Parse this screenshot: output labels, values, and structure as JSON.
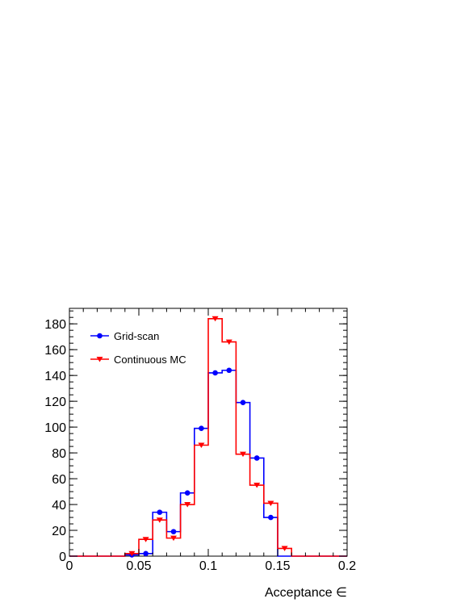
{
  "chart_data": {
    "type": "bar",
    "style": "step-histogram",
    "xlabel": "Acceptance ∈",
    "ylabel": "",
    "xlim": [
      0,
      0.2
    ],
    "ylim": [
      0,
      192
    ],
    "grid": false,
    "legend_position": "top-left",
    "x_ticks": [
      {
        "value": 0,
        "label": "0"
      },
      {
        "value": 0.05,
        "label": "0.05"
      },
      {
        "value": 0.1,
        "label": "0.1"
      },
      {
        "value": 0.15,
        "label": "0.15"
      },
      {
        "value": 0.2,
        "label": "0.2"
      }
    ],
    "y_ticks": [
      {
        "value": 0,
        "label": "0"
      },
      {
        "value": 20,
        "label": "20"
      },
      {
        "value": 40,
        "label": "40"
      },
      {
        "value": 60,
        "label": "60"
      },
      {
        "value": 80,
        "label": "80"
      },
      {
        "value": 100,
        "label": "100"
      },
      {
        "value": 120,
        "label": "120"
      },
      {
        "value": 140,
        "label": "140"
      },
      {
        "value": 160,
        "label": "160"
      },
      {
        "value": 180,
        "label": "180"
      }
    ],
    "bin_edges": [
      0,
      0.01,
      0.02,
      0.03,
      0.04,
      0.05,
      0.06,
      0.07,
      0.08,
      0.09,
      0.1,
      0.11,
      0.12,
      0.13,
      0.14,
      0.15,
      0.16,
      0.17,
      0.18,
      0.19,
      0.2
    ],
    "series": [
      {
        "name": "Grid-scan",
        "color": "#0000ff",
        "marker": "circle",
        "values": [
          0,
          0,
          0,
          0,
          1,
          2,
          34,
          19,
          49,
          99,
          142,
          144,
          119,
          76,
          30,
          0,
          0,
          0,
          0,
          0
        ]
      },
      {
        "name": "Continuous MC",
        "color": "#ff0000",
        "marker": "triangle-down",
        "values": [
          0,
          0,
          0,
          0,
          2,
          13,
          28,
          14,
          40,
          86,
          184,
          166,
          79,
          55,
          41,
          6,
          0,
          0,
          0,
          0
        ]
      }
    ]
  }
}
